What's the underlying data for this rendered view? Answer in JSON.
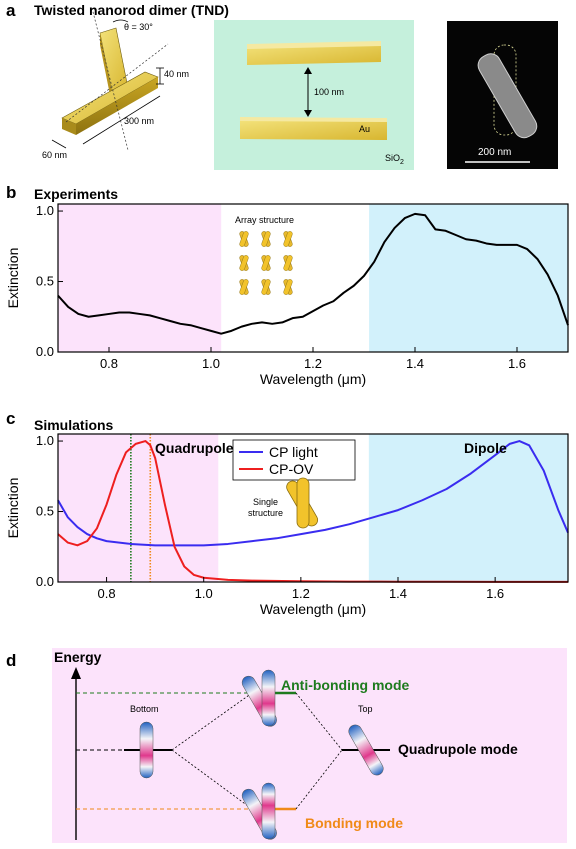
{
  "panel_a": {
    "letter": "a",
    "title": "Twisted nanorod dimer (TND)",
    "theta_label": "θ = 30°",
    "dim_height": "40 nm",
    "dim_length": "300 nm",
    "dim_width": "60 nm",
    "gap_label": "100 nm",
    "metal_label": "Au",
    "substrate_label": "SiO",
    "substrate_sub": "2",
    "scalebar_label": "200 nm",
    "colors": {
      "gold": "#e3c94a",
      "substrate": "#c5f0dc",
      "sem_bg": "#050505"
    }
  },
  "panel_b": {
    "letter": "b",
    "title": "Experiments",
    "inset_label": "Array structure"
  },
  "panel_c": {
    "letter": "c",
    "title": "Simulations",
    "annot_quadrupole": "Quadrupole",
    "annot_dipole": "Dipole",
    "inset_label_1": "Single",
    "inset_label_2": "structure"
  },
  "panel_d": {
    "letter": "d",
    "energy_label": "Energy",
    "bottom_label": "Bottom",
    "top_label": "Top",
    "antibonding_label": "Anti-bonding mode",
    "quadrupole_label": "Quadrupole mode",
    "bonding_label": "Bonding mode",
    "colors": {
      "background": "#fce3fb",
      "antibonding": "#1e7b1e",
      "bonding": "#f08a18"
    }
  },
  "chart_data": [
    {
      "id": "experiments",
      "type": "line",
      "title": "Experiments",
      "xlabel": "Wavelength (μm)",
      "ylabel": "Extinction",
      "xlim": [
        0.7,
        1.7
      ],
      "ylim": [
        0,
        1.05
      ],
      "xticks": [
        0.8,
        1.0,
        1.2,
        1.4,
        1.6
      ],
      "xtick_labels": [
        "0.8",
        "1.0",
        "1.2",
        "1.4",
        "1.6"
      ],
      "yticks": [
        0,
        0.5,
        1.0
      ],
      "ytick_labels": [
        "0.0",
        "0.5",
        "1.0"
      ],
      "shaded_regions": [
        {
          "x0": 0.7,
          "x1": 1.02,
          "color": "#fce3fb"
        },
        {
          "x0": 1.31,
          "x1": 1.7,
          "color": "#d2f1fb"
        }
      ],
      "series": [
        {
          "color": "#000000",
          "x": [
            0.7,
            0.72,
            0.74,
            0.76,
            0.78,
            0.8,
            0.82,
            0.84,
            0.86,
            0.88,
            0.9,
            0.92,
            0.94,
            0.96,
            0.98,
            1.0,
            1.02,
            1.04,
            1.06,
            1.08,
            1.1,
            1.12,
            1.14,
            1.16,
            1.18,
            1.2,
            1.22,
            1.24,
            1.26,
            1.28,
            1.3,
            1.32,
            1.34,
            1.36,
            1.38,
            1.4,
            1.42,
            1.44,
            1.46,
            1.48,
            1.5,
            1.52,
            1.54,
            1.56,
            1.58,
            1.6,
            1.62,
            1.64,
            1.66,
            1.68,
            1.7
          ],
          "y": [
            0.4,
            0.32,
            0.27,
            0.25,
            0.26,
            0.27,
            0.28,
            0.28,
            0.27,
            0.26,
            0.24,
            0.22,
            0.2,
            0.19,
            0.17,
            0.15,
            0.13,
            0.15,
            0.18,
            0.2,
            0.21,
            0.2,
            0.21,
            0.24,
            0.25,
            0.29,
            0.33,
            0.36,
            0.42,
            0.47,
            0.54,
            0.64,
            0.78,
            0.88,
            0.95,
            0.98,
            0.97,
            0.87,
            0.86,
            0.83,
            0.8,
            0.79,
            0.77,
            0.76,
            0.76,
            0.76,
            0.73,
            0.66,
            0.55,
            0.4,
            0.19
          ]
        }
      ]
    },
    {
      "id": "simulations",
      "type": "line",
      "title": "Simulations",
      "xlabel": "Wavelength (μm)",
      "ylabel": "Extinction",
      "xlim": [
        0.7,
        1.75
      ],
      "ylim": [
        0,
        1.05
      ],
      "xticks": [
        0.8,
        1.0,
        1.2,
        1.4,
        1.6
      ],
      "xtick_labels": [
        "0.8",
        "1.0",
        "1.2",
        "1.4",
        "1.6"
      ],
      "yticks": [
        0,
        0.5,
        1.0
      ],
      "ytick_labels": [
        "0.0",
        "0.5",
        "1.0"
      ],
      "legend": "top-center",
      "shaded_regions": [
        {
          "x0": 0.7,
          "x1": 1.03,
          "color": "#fce3fb"
        },
        {
          "x0": 1.34,
          "x1": 1.75,
          "color": "#d2f1fb"
        }
      ],
      "vlines": [
        {
          "x": 0.85,
          "color": "#1e7b1e",
          "style": "dotted"
        },
        {
          "x": 0.89,
          "color": "#f08a18",
          "style": "dotted"
        }
      ],
      "series": [
        {
          "name": "CP light",
          "color": "#3a2cf0",
          "x": [
            0.7,
            0.72,
            0.74,
            0.76,
            0.78,
            0.8,
            0.85,
            0.9,
            0.95,
            1.0,
            1.05,
            1.1,
            1.15,
            1.2,
            1.25,
            1.3,
            1.35,
            1.4,
            1.45,
            1.5,
            1.55,
            1.6,
            1.63,
            1.65,
            1.67,
            1.7,
            1.73,
            1.75
          ],
          "y": [
            0.58,
            0.46,
            0.39,
            0.34,
            0.31,
            0.29,
            0.27,
            0.26,
            0.26,
            0.26,
            0.27,
            0.29,
            0.31,
            0.34,
            0.37,
            0.41,
            0.46,
            0.51,
            0.58,
            0.66,
            0.77,
            0.9,
            0.98,
            1.0,
            0.97,
            0.79,
            0.51,
            0.35
          ]
        },
        {
          "name": "CP-OV",
          "color": "#ee1f1f",
          "x": [
            0.7,
            0.72,
            0.74,
            0.76,
            0.78,
            0.8,
            0.82,
            0.84,
            0.86,
            0.88,
            0.89,
            0.9,
            0.92,
            0.94,
            0.96,
            0.98,
            1.0,
            1.05,
            1.1,
            1.2,
            1.3,
            1.4,
            1.5,
            1.6,
            1.75
          ],
          "y": [
            0.34,
            0.28,
            0.26,
            0.29,
            0.38,
            0.55,
            0.76,
            0.92,
            0.98,
            1.0,
            0.97,
            0.88,
            0.55,
            0.25,
            0.11,
            0.05,
            0.03,
            0.015,
            0.01,
            0.005,
            0.003,
            0.002,
            0.002,
            0.001,
            0.001
          ]
        }
      ]
    }
  ]
}
